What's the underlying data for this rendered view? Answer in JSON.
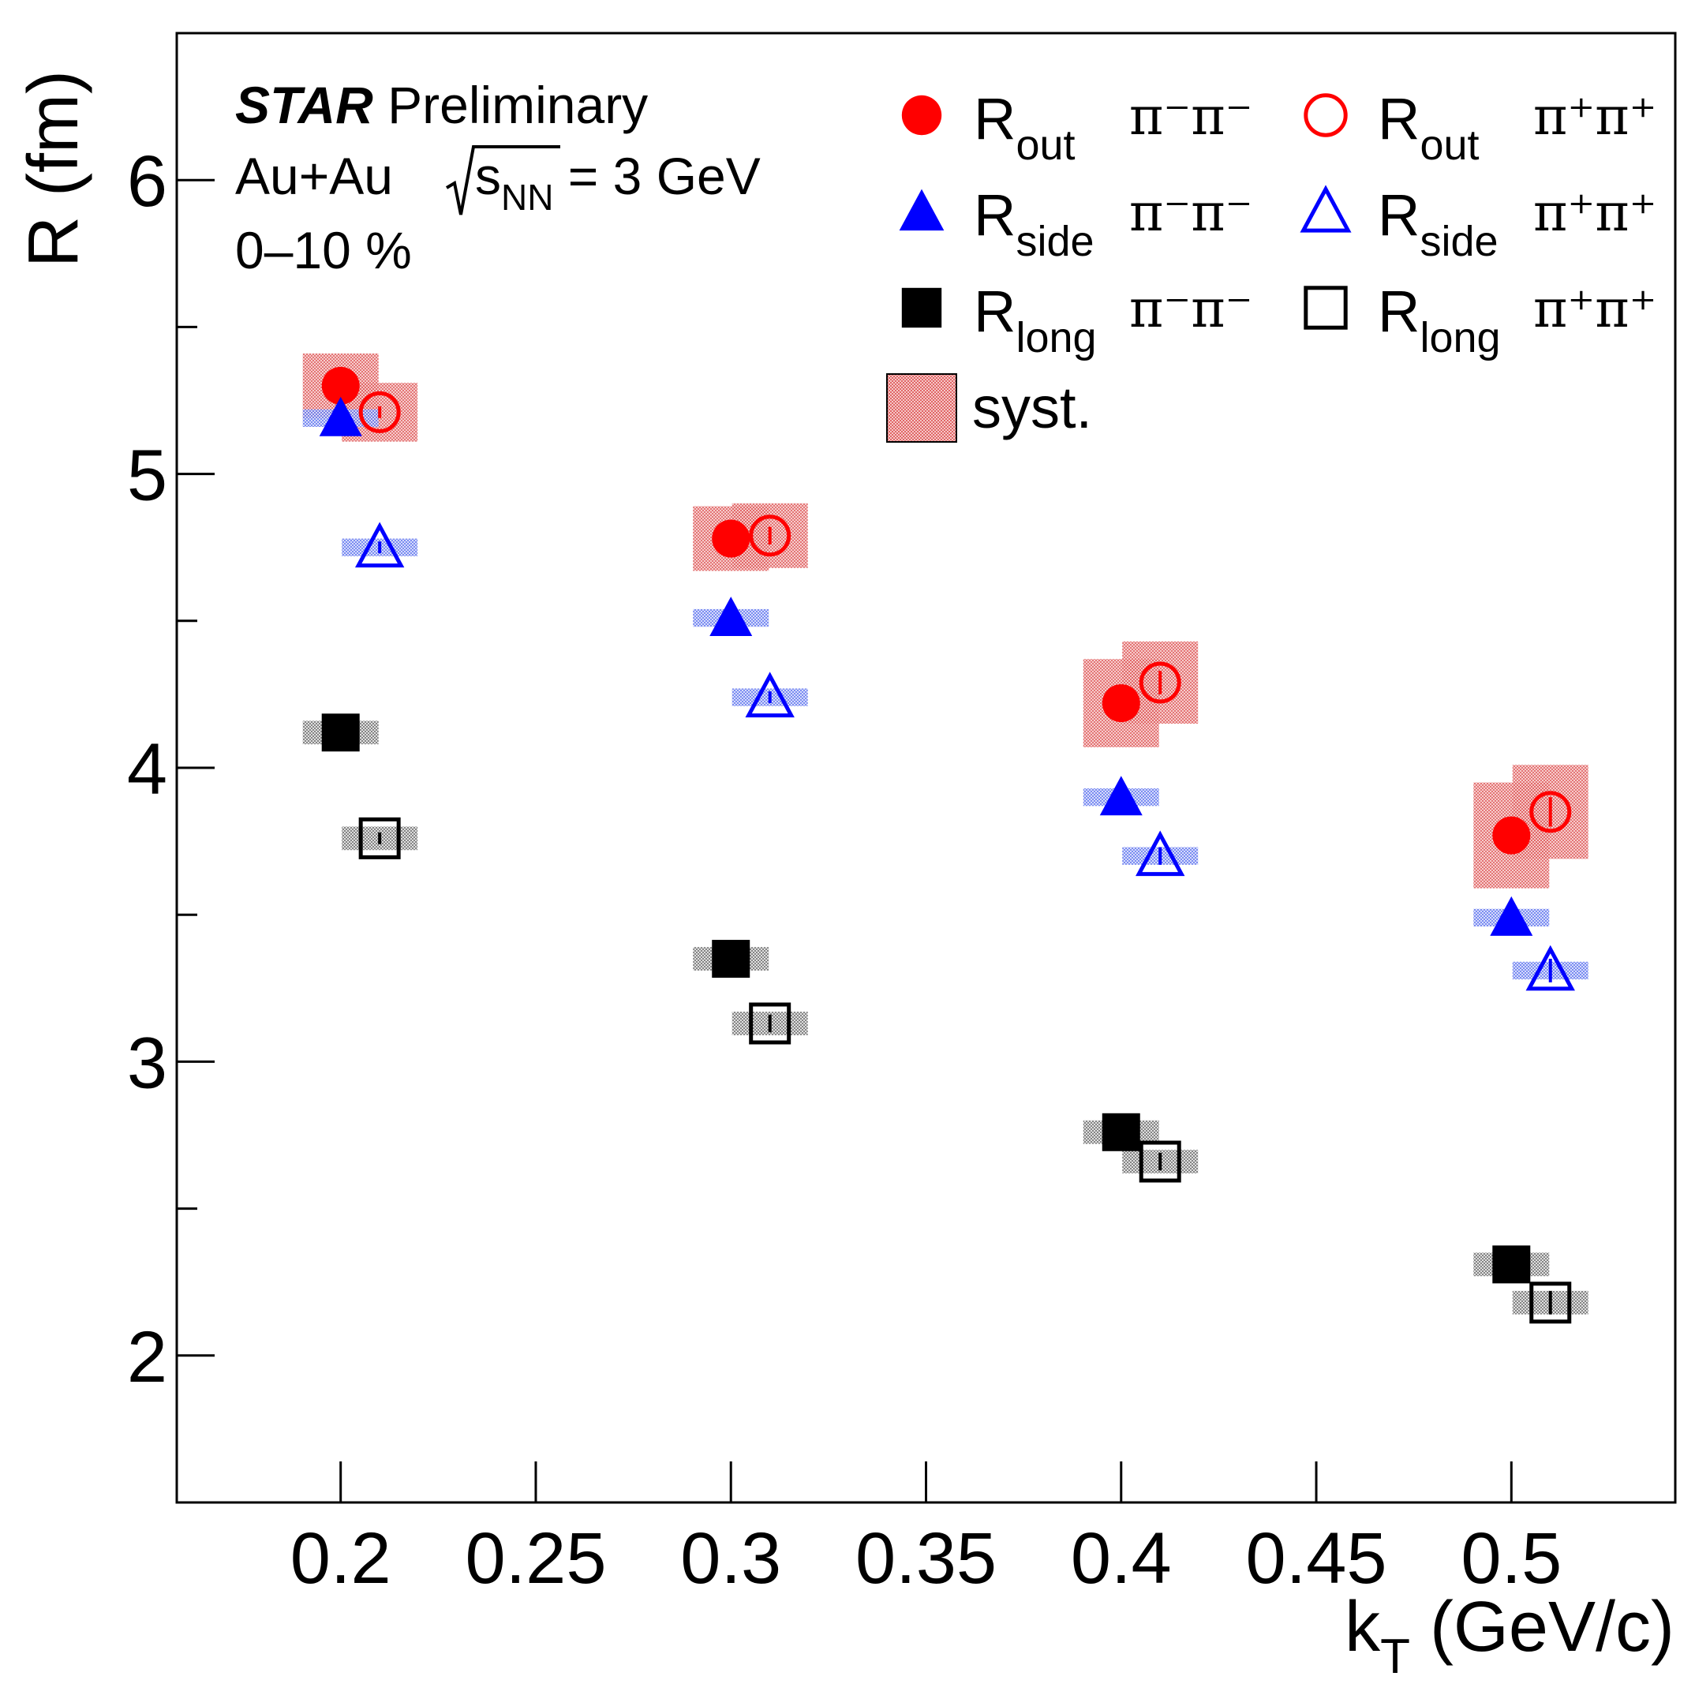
{
  "chart_data": {
    "type": "scatter",
    "xlabel": "k",
    "xlabel_sub": "T",
    "xlabel_unit": "(GeV/c)",
    "ylabel": "R (fm)",
    "xlim": [
      0.158,
      0.542
    ],
    "ylim": [
      1.5,
      6.5
    ],
    "x_ticks": [
      0.2,
      0.25,
      0.3,
      0.35,
      0.4,
      0.45,
      0.5
    ],
    "x_tick_labels": [
      "0.2",
      "0.25",
      "0.3",
      "0.35",
      "0.4",
      "0.45",
      "0.5"
    ],
    "y_ticks": [
      2,
      3,
      4,
      5,
      6
    ],
    "y_tick_labels": [
      "2",
      "3",
      "4",
      "5",
      "6"
    ],
    "y_minor_ticks": [
      2.5,
      3.5,
      4.5,
      5.5
    ],
    "annotation": {
      "experiment": "STAR",
      "status": "Preliminary",
      "system": "Au+Au",
      "energy_symbol": "s",
      "energy_sub": "NN",
      "energy_value": "= 3 GeV",
      "centrality": "0–10 %"
    },
    "legend": {
      "placement": "top-right",
      "entries": [
        {
          "series": "rout_minus",
          "label": "R",
          "sub": "out",
          "pion": "π⁻π⁻"
        },
        {
          "series": "rout_plus",
          "label": "R",
          "sub": "out",
          "pion": "π⁺π⁺"
        },
        {
          "series": "rside_minus",
          "label": "R",
          "sub": "side",
          "pion": "π⁻π⁻"
        },
        {
          "series": "rside_plus",
          "label": "R",
          "sub": "side",
          "pion": "π⁺π⁺"
        },
        {
          "series": "rlong_minus",
          "label": "R",
          "sub": "long",
          "pion": "π⁻π⁻"
        },
        {
          "series": "rlong_plus",
          "label": "R",
          "sub": "long",
          "pion": "π⁺π⁺"
        }
      ],
      "syst_label": "syst.",
      "syst_color": "#e98a8a"
    },
    "series": [
      {
        "key": "rout_minus",
        "name": "R_out π⁻π⁻",
        "marker": "circle",
        "filled": true,
        "color": "#ff0000",
        "syst_color": "#e98a8a",
        "x": [
          0.2,
          0.3,
          0.4,
          0.5
        ],
        "y": [
          5.3,
          4.78,
          4.22,
          3.77
        ],
        "stat_err": [
          0.0,
          0.0,
          0.0,
          0.0
        ],
        "syst_err": [
          0.11,
          0.11,
          0.15,
          0.18
        ]
      },
      {
        "key": "rout_plus",
        "name": "R_out π⁺π⁺",
        "marker": "circle",
        "filled": false,
        "color": "#ff0000",
        "syst_color": "#e98a8a",
        "x": [
          0.21,
          0.31,
          0.41,
          0.51
        ],
        "y": [
          5.21,
          4.79,
          4.29,
          3.85
        ],
        "stat_err": [
          0.02,
          0.03,
          0.04,
          0.05
        ],
        "syst_err": [
          0.1,
          0.11,
          0.14,
          0.16
        ]
      },
      {
        "key": "rside_minus",
        "name": "R_side π⁻π⁻",
        "marker": "triangle",
        "filled": true,
        "color": "#0000ff",
        "syst_color": "#8c9cf2",
        "x": [
          0.2,
          0.3,
          0.4,
          0.5
        ],
        "y": [
          5.19,
          4.51,
          3.9,
          3.49
        ],
        "stat_err": [
          0.0,
          0.0,
          0.0,
          0.0
        ],
        "syst_err": [
          0.03,
          0.03,
          0.03,
          0.03
        ]
      },
      {
        "key": "rside_plus",
        "name": "R_side π⁺π⁺",
        "marker": "triangle",
        "filled": false,
        "color": "#0000ff",
        "syst_color": "#8c9cf2",
        "x": [
          0.21,
          0.31,
          0.41,
          0.51
        ],
        "y": [
          4.75,
          4.24,
          3.7,
          3.31
        ],
        "stat_err": [
          0.02,
          0.02,
          0.03,
          0.04
        ],
        "syst_err": [
          0.03,
          0.03,
          0.03,
          0.03
        ]
      },
      {
        "key": "rlong_minus",
        "name": "R_long π⁻π⁻",
        "marker": "square",
        "filled": true,
        "color": "#000000",
        "syst_color": "#9a9a9a",
        "x": [
          0.2,
          0.3,
          0.4,
          0.5
        ],
        "y": [
          4.12,
          3.35,
          2.76,
          2.31
        ],
        "stat_err": [
          0.0,
          0.0,
          0.0,
          0.0
        ],
        "syst_err": [
          0.04,
          0.04,
          0.04,
          0.04
        ]
      },
      {
        "key": "rlong_plus",
        "name": "R_long π⁺π⁺",
        "marker": "square",
        "filled": false,
        "color": "#000000",
        "syst_color": "#9a9a9a",
        "x": [
          0.21,
          0.31,
          0.41,
          0.51
        ],
        "y": [
          3.76,
          3.13,
          2.66,
          2.18
        ],
        "stat_err": [
          0.02,
          0.03,
          0.03,
          0.04
        ],
        "syst_err": [
          0.04,
          0.04,
          0.04,
          0.04
        ]
      }
    ]
  }
}
